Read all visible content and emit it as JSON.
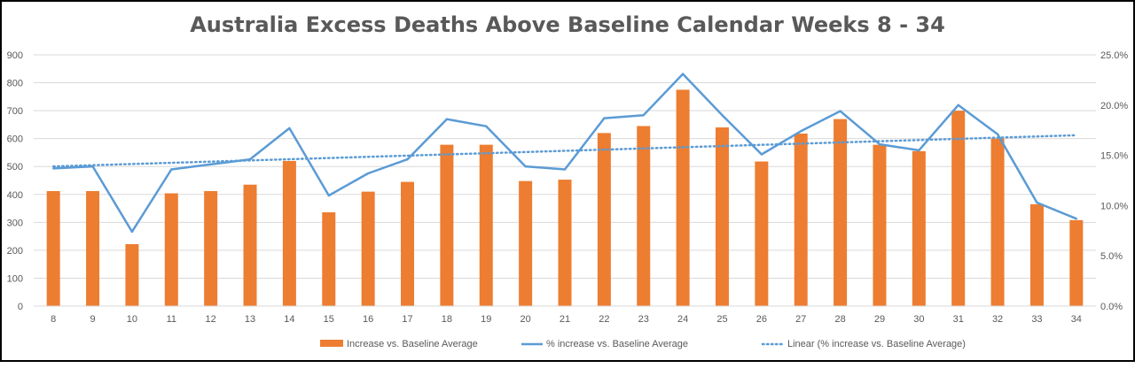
{
  "chart_data": {
    "type": "bar",
    "title": "Australia Excess Deaths Above Baseline Calendar Weeks 8 - 34",
    "categories": [
      "8",
      "9",
      "10",
      "11",
      "12",
      "13",
      "14",
      "15",
      "16",
      "17",
      "18",
      "19",
      "20",
      "21",
      "22",
      "23",
      "24",
      "25",
      "26",
      "27",
      "28",
      "29",
      "30",
      "31",
      "32",
      "33",
      "34"
    ],
    "series": [
      {
        "name": "Increase vs. Baseline Average",
        "type": "bar",
        "axis": "left",
        "color": "#ED7D31",
        "values": [
          412,
          412,
          222,
          404,
          412,
          435,
          520,
          336,
          410,
          445,
          578,
          578,
          448,
          453,
          620,
          645,
          775,
          640,
          518,
          618,
          670,
          578,
          555,
          700,
          600,
          365,
          308
        ]
      },
      {
        "name": "% increase vs. Baseline Average",
        "type": "line",
        "axis": "right",
        "color": "#5B9BD5",
        "values": [
          0.137,
          0.139,
          0.074,
          0.136,
          0.141,
          0.146,
          0.177,
          0.11,
          0.132,
          0.146,
          0.186,
          0.179,
          0.139,
          0.136,
          0.187,
          0.19,
          0.231,
          0.19,
          0.151,
          0.174,
          0.194,
          0.161,
          0.155,
          0.2,
          0.171,
          0.103,
          0.087
        ]
      },
      {
        "name": "Linear (% increase vs. Baseline Average)",
        "type": "trendline",
        "axis": "right",
        "color": "#5B9BD5",
        "start": 0.139,
        "end": 0.17
      }
    ],
    "ylim_left": [
      0,
      900
    ],
    "yticks_left": [
      "0",
      "100",
      "200",
      "300",
      "400",
      "500",
      "600",
      "700",
      "800",
      "900"
    ],
    "ylim_right": [
      0,
      0.25
    ],
    "yticks_right": [
      "0.0%",
      "5.0%",
      "10.0%",
      "15.0%",
      "20.0%",
      "25.0%"
    ],
    "grid": true,
    "legend": "bottom"
  }
}
